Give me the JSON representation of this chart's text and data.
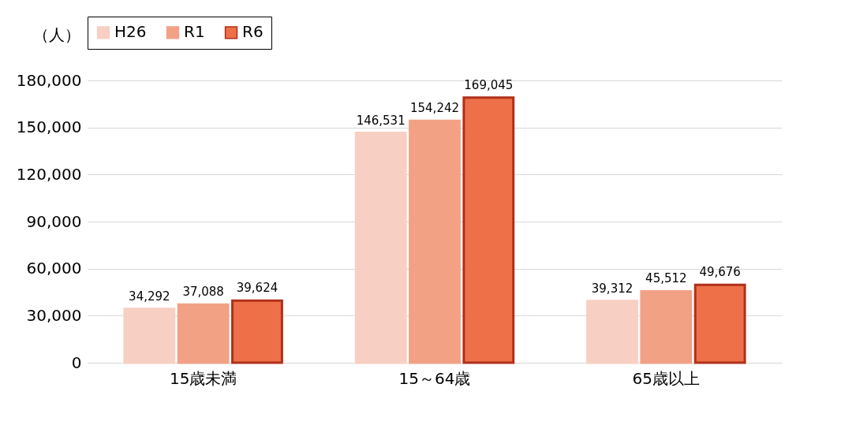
{
  "chart_data": {
    "type": "bar",
    "ylabel": "（人）",
    "categories": [
      "15歳未満",
      "15～64歳",
      "65歳以上"
    ],
    "series": [
      {
        "name": "H26",
        "color": "#f8cfc3",
        "values": [
          34292,
          146531,
          39312
        ],
        "value_labels": [
          "34,292",
          "146,531",
          "39,312"
        ]
      },
      {
        "name": "R1",
        "color": "#f2a185",
        "values": [
          37088,
          154242,
          45512
        ],
        "value_labels": [
          "37,088",
          "154,242",
          "45,512"
        ]
      },
      {
        "name": "R6",
        "color": "#ee7049",
        "values": [
          39624,
          169045,
          49676
        ],
        "value_labels": [
          "39,624",
          "169,045",
          "49,676"
        ]
      }
    ],
    "ylim": [
      0,
      180000
    ],
    "yticks": [
      {
        "value": 0,
        "label": "0"
      },
      {
        "value": 30000,
        "label": "30,000"
      },
      {
        "value": 60000,
        "label": "60,000"
      },
      {
        "value": 90000,
        "label": "90,000"
      },
      {
        "value": 120000,
        "label": "120,000"
      },
      {
        "value": 150000,
        "label": "150,000"
      },
      {
        "value": 180000,
        "label": "180,000"
      }
    ],
    "grid": "y",
    "legend": "top"
  }
}
